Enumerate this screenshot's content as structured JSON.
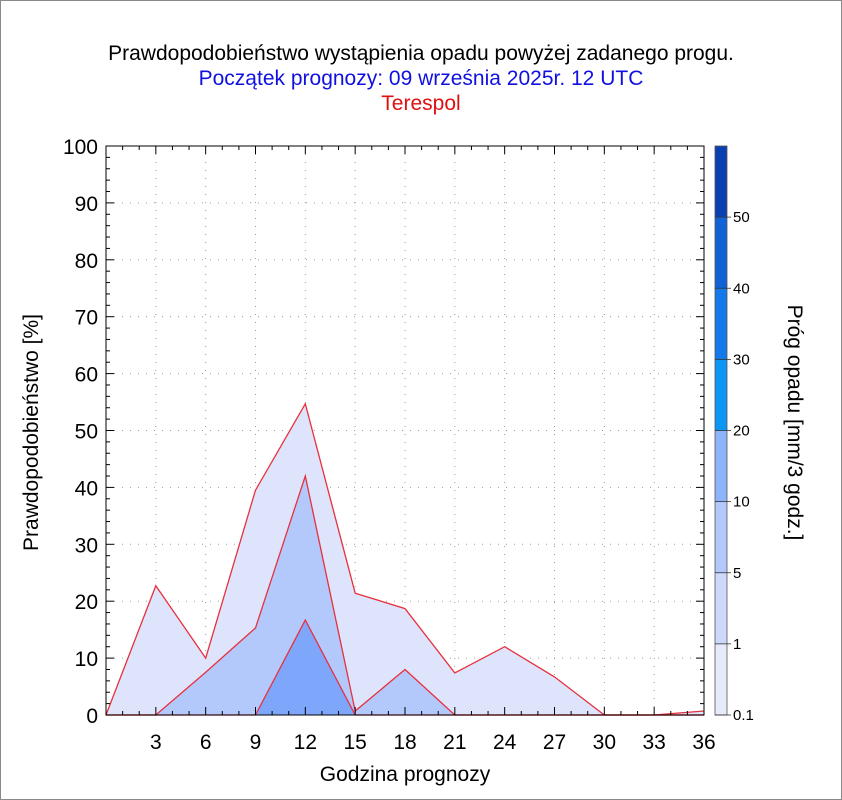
{
  "title": "Prawdopodobieństwo wystąpienia opadu powyżej zadanego progu.",
  "subtitle": "Początek prognozy: 09 września 2025r. 12 UTC",
  "location": "Terespol",
  "chart_data": {
    "type": "area",
    "xlabel": "Godzina prognozy",
    "ylabel": "Prawdopodobieństwo [%]",
    "x": [
      0,
      3,
      6,
      9,
      12,
      15,
      18,
      21,
      24,
      27,
      30,
      33,
      36
    ],
    "x_tick_labels": [
      "3",
      "6",
      "9",
      "12",
      "15",
      "18",
      "21",
      "24",
      "27",
      "30",
      "33",
      "36"
    ],
    "y_tick_labels": [
      "0",
      "10",
      "20",
      "30",
      "40",
      "50",
      "60",
      "70",
      "80",
      "90",
      "100"
    ],
    "xlim": [
      0,
      36
    ],
    "ylim": [
      0,
      100
    ],
    "grid": true,
    "series": [
      {
        "threshold": 0.1,
        "color": "#dde4fc",
        "values": [
          0,
          22.7,
          10,
          39.5,
          54.7,
          21.4,
          18.7,
          7.4,
          12,
          6.7,
          0,
          0,
          0.7
        ]
      },
      {
        "threshold": 1,
        "color": "#b3c8fb",
        "values": [
          0,
          0,
          7.5,
          15.3,
          42,
          0.7,
          8,
          0,
          0,
          0,
          0,
          0,
          0
        ]
      },
      {
        "threshold": 5,
        "color": "#7ea6fa",
        "values": [
          0,
          0,
          0,
          0,
          16.7,
          0,
          0,
          0,
          0,
          0,
          0,
          0,
          0
        ]
      }
    ],
    "series_line_color": "#e8303c",
    "colorbar": {
      "label": "Próg opadu [mm/3 godz.]",
      "tick_labels": [
        "0.1",
        "1",
        "5",
        "10",
        "20",
        "30",
        "40",
        "50"
      ],
      "colors": [
        "#e6ebfc",
        "#cdd9fb",
        "#b3c8fb",
        "#8db3f9",
        "#0b96f6",
        "#1479ea",
        "#1062d6",
        "#0c50c3",
        "#0a3fb0"
      ]
    }
  }
}
